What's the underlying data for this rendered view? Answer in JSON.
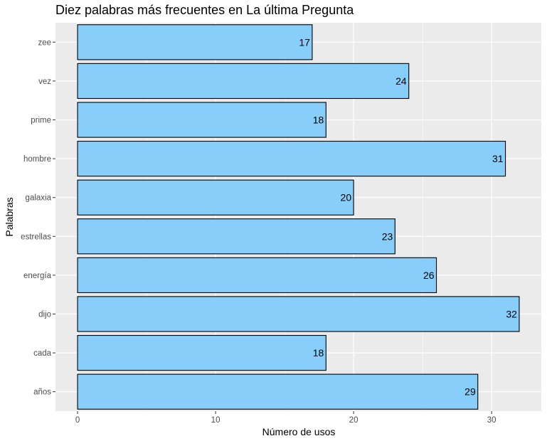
{
  "chart_data": {
    "type": "bar",
    "orientation": "horizontal",
    "title": "Diez palabras más frecuentes en La última Pregunta",
    "xlabel": "Número de usos",
    "ylabel": "Palabras",
    "categories": [
      "años",
      "cada",
      "dijo",
      "energía",
      "estrellas",
      "galaxia",
      "hombre",
      "prime",
      "vez",
      "zee"
    ],
    "values": [
      29,
      18,
      32,
      26,
      23,
      20,
      31,
      18,
      24,
      17
    ],
    "xlim": [
      -1.6,
      33.6
    ],
    "xticks": [
      0,
      10,
      20,
      30
    ],
    "grid": true,
    "legend": "none",
    "colors": {
      "bar_fill": "#87CEFA",
      "bar_stroke": "#000000",
      "panel_bg": "#EBEBEB",
      "grid_major": "#FFFFFF"
    }
  }
}
